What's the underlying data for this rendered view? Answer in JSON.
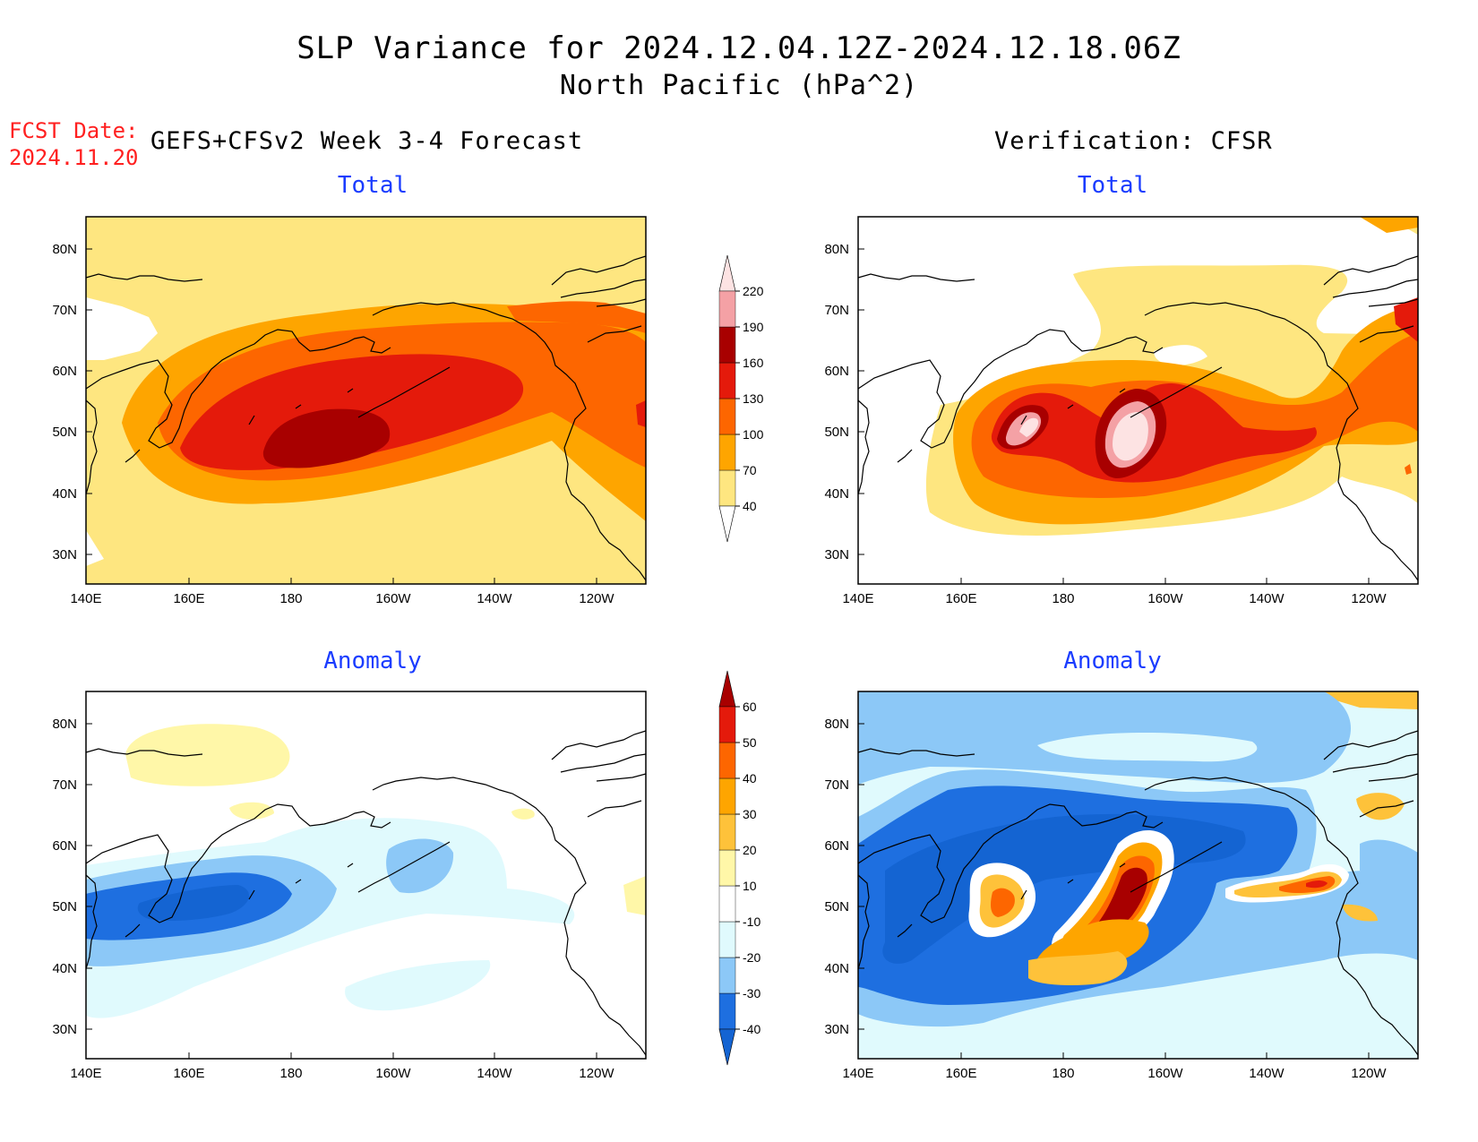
{
  "header": {
    "title": "SLP Variance for 2024.12.04.12Z-2024.12.18.06Z",
    "subtitle": "North Pacific (hPa^2)",
    "fcst_label": "FCST Date:",
    "fcst_date": "2024.11.20",
    "left_heading": "GEFS+CFSv2 Week 3-4 Forecast",
    "right_heading": "Verification: CFSR"
  },
  "panels": {
    "fcst_total": "Total",
    "obs_total": "Total",
    "fcst_anom": "Anomaly",
    "obs_anom": "Anomaly"
  },
  "axes": {
    "lon_labels": [
      "140E",
      "160E",
      "180",
      "160W",
      "140W",
      "120W"
    ],
    "lat_labels": [
      "80N",
      "70N",
      "60N",
      "50N",
      "40N",
      "30N"
    ]
  },
  "colorbars": {
    "total": {
      "labels": [
        "40",
        "70",
        "100",
        "130",
        "160",
        "190",
        "220"
      ],
      "colors": [
        "#ffffff",
        "#fee680",
        "#fea500",
        "#fd6600",
        "#e41a0b",
        "#a80000",
        "#f4a1a5",
        "#fde3e3"
      ]
    },
    "anomaly": {
      "labels": [
        "-40",
        "-30",
        "-20",
        "-10",
        "10",
        "20",
        "30",
        "40",
        "50",
        "60"
      ],
      "colors": [
        "#1464d2",
        "#1e6fe0",
        "#8cc8f7",
        "#e0fafd",
        "#ffffff",
        "#fff7a8",
        "#fec23a",
        "#fea500",
        "#fd6600",
        "#e41a0b",
        "#a80000"
      ]
    }
  }
}
